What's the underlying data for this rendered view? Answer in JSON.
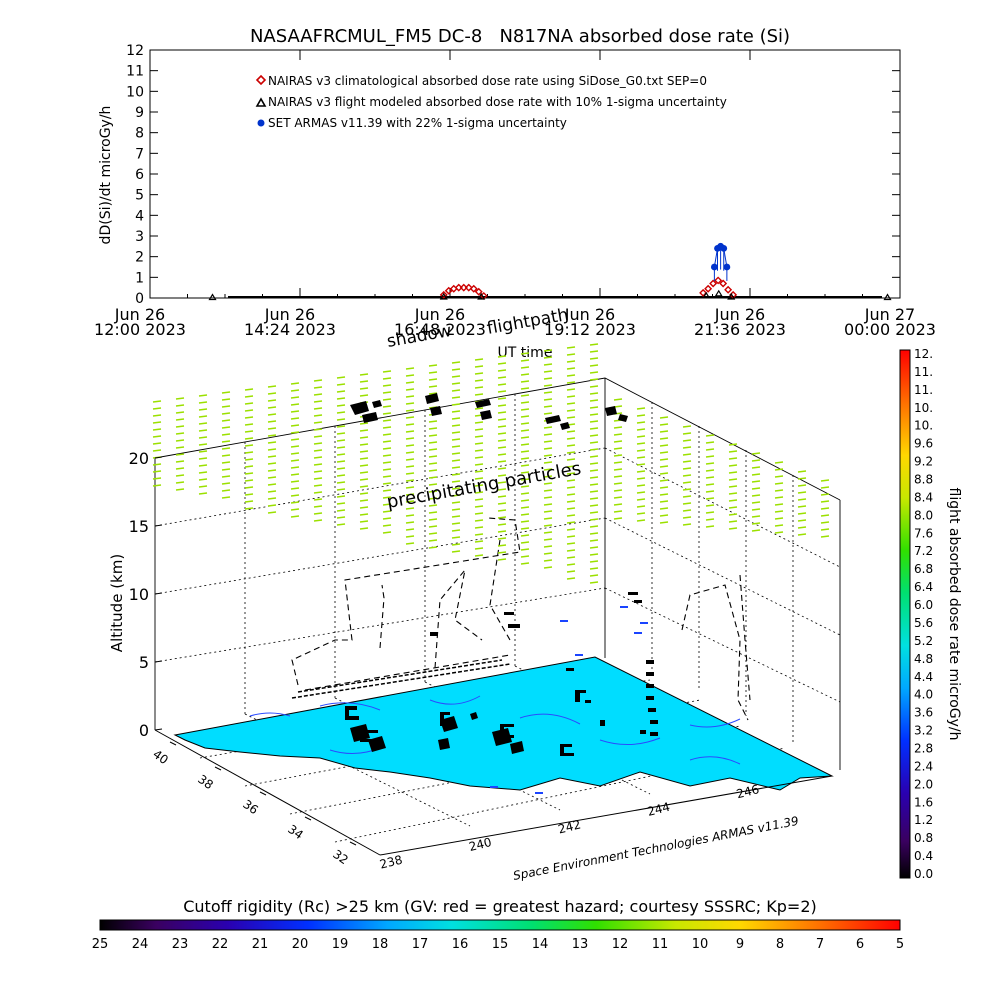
{
  "chart_data": [
    {
      "type": "scatter",
      "title": "NASAAFRCMUL_FM5 DC-8   N817NA absorbed dose rate (Si)",
      "xlabel": "UT time",
      "ylabel": "dD(Si)/dt microGy/h",
      "ylim": [
        0,
        12
      ],
      "y_ticks": [
        "0",
        "1",
        "2",
        "3",
        "4",
        "5",
        "6",
        "7",
        "8",
        "9",
        "10",
        "11",
        "12"
      ],
      "x_ticks": [
        {
          "line1": "Jun 26",
          "line2": "12:00 2023",
          "hour": 12.0
        },
        {
          "line1": "Jun 26",
          "line2": "14:24 2023",
          "hour": 14.4
        },
        {
          "line1": "Jun 26",
          "line2": "16:48 2023",
          "hour": 16.8
        },
        {
          "line1": "Jun 26",
          "line2": "19:12 2023",
          "hour": 19.2
        },
        {
          "line1": "Jun 26",
          "line2": "21:36 2023",
          "hour": 21.6
        },
        {
          "line1": "Jun 27",
          "line2": "00:00 2023",
          "hour": 24.0
        }
      ],
      "xlim_hours": [
        12,
        24
      ],
      "legend_position": "top-left",
      "series": [
        {
          "name": "NAIRAS v3 climatological absorbed dose rate using SiDose_G0.txt SEP=0",
          "color": "#cc0000",
          "marker": "diamond",
          "x_hours": [
            16.7,
            16.78,
            16.86,
            16.94,
            17.02,
            17.1,
            17.18,
            17.26,
            17.34,
            20.85,
            20.93,
            21.01,
            21.09,
            21.17,
            21.25,
            21.33
          ],
          "values": [
            0.15,
            0.35,
            0.45,
            0.5,
            0.5,
            0.5,
            0.45,
            0.3,
            0.1,
            0.25,
            0.45,
            0.7,
            0.85,
            0.7,
            0.4,
            0.15
          ]
        },
        {
          "name": "NAIRAS v3 flight modeled absorbed dose rate with 10% 1-sigma uncertainty",
          "color": "#000000",
          "marker": "triangle",
          "x_hours": [
            13.0,
            16.7,
            17.3,
            20.9,
            21.1,
            21.3,
            23.8
          ],
          "values": [
            0.02,
            0.05,
            0.05,
            0.1,
            0.2,
            0.05,
            0.02
          ]
        },
        {
          "name": "SET ARMAS v11.39 with 22% 1-sigma uncertainty",
          "color": "#0033cc",
          "marker": "circle",
          "x_hours": [
            21.03,
            21.08,
            21.13,
            21.18,
            21.23
          ],
          "values": [
            1.5,
            2.4,
            2.5,
            2.4,
            1.5
          ]
        }
      ]
    },
    {
      "type": "scatter3d",
      "zlabel": "Altitude (km)",
      "z_ticks": [
        "0",
        "5",
        "10",
        "15",
        "20"
      ],
      "lat_ticks": [
        "40",
        "38",
        "36",
        "34",
        "32"
      ],
      "lon_ticks": [
        "238",
        "240",
        "242",
        "244",
        "246"
      ],
      "lon_tick_values": [
        238,
        240,
        242,
        244,
        246
      ],
      "annotations": [
        "shadow",
        "flightpath",
        "precipitating particles"
      ],
      "credit": "Space Environment Technologies ARMAS v11.39",
      "colorbar": {
        "label": "flight absorbed dose rate microGy/h",
        "ticks": [
          "12.",
          "11.",
          "11.",
          "10.",
          "10.",
          "9.6",
          "9.2",
          "8.8",
          "8.4",
          "8.0",
          "7.6",
          "7.2",
          "6.8",
          "6.4",
          "6.0",
          "5.6",
          "5.2",
          "4.8",
          "4.4",
          "4.0",
          "3.6",
          "3.2",
          "2.8",
          "2.4",
          "2.0",
          "1.6",
          "1.2",
          "0.8",
          "0.4",
          "0.0"
        ]
      }
    },
    {
      "type": "heatmap",
      "title": "Cutoff rigidity (Rc) >25 km (GV: red = greatest hazard; courtesy SSSRC; Kp=2)",
      "colorbar_ticks": [
        "25",
        "24",
        "23",
        "22",
        "21",
        "20",
        "19",
        "18",
        "17",
        "16",
        "15",
        "14",
        "13",
        "12",
        "11",
        "10",
        "9",
        "8",
        "7",
        "6",
        "5"
      ]
    }
  ],
  "colors": {
    "ground": "#00ddff",
    "precip": "#9be000",
    "axis": "#000000"
  }
}
